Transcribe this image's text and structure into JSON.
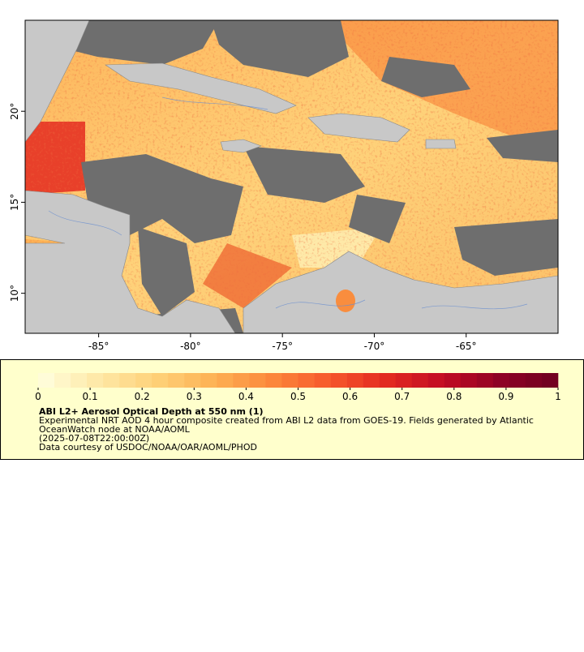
{
  "map": {
    "xlim": [
      -89,
      -60
    ],
    "ylim": [
      7.8,
      25
    ],
    "xticks": [
      {
        "value": -85,
        "label": "-85°"
      },
      {
        "value": -80,
        "label": "-80°"
      },
      {
        "value": -75,
        "label": "-75°"
      },
      {
        "value": -70,
        "label": "-70°"
      },
      {
        "value": -65,
        "label": "-65°"
      }
    ],
    "yticks": [
      {
        "value": 10,
        "label": "10°"
      },
      {
        "value": 15,
        "label": "15°"
      },
      {
        "value": 20,
        "label": "20°"
      }
    ]
  },
  "colorbar": {
    "lim": [
      0,
      1
    ],
    "ticks": [
      0,
      0.1,
      0.2,
      0.3,
      0.4,
      0.5,
      0.6,
      0.7,
      0.8,
      0.9,
      1
    ],
    "colors": [
      "#ffffe0",
      "#fee9a8",
      "#fed27a",
      "#fdb255",
      "#fc8a3c",
      "#f75a2c",
      "#e42a20",
      "#c20c23",
      "#8f0225",
      "#6e0020"
    ]
  },
  "legend": {
    "title": "ABI L2+ Aerosol Optical Depth at 550 nm (1)",
    "lines": [
      "Experimental NRT AOD 4 hour composite created from ABI L2 data from GOES-19. Fields generated by Atlantic",
      "OceanWatch node at NOAA/AOML",
      "(2025-07-08T22:00:00Z)",
      "Data courtesy of USDOC/NOAA/OAR/AOML/PHOD"
    ]
  }
}
